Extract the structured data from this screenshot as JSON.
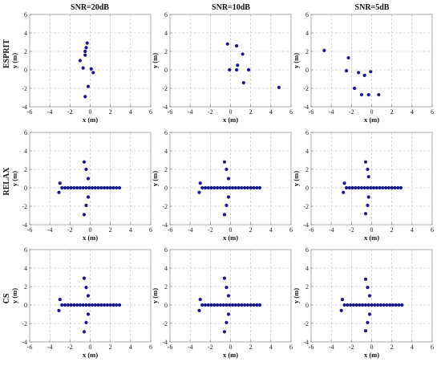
{
  "figure": {
    "column_titles": [
      "SNR=20dB",
      "SNR=10dB",
      "SNR=5dB"
    ],
    "row_labels": [
      "ESPRIT",
      "RELAX",
      "CS"
    ]
  },
  "chart_data": [
    {
      "type": "scatter",
      "title": "SNR=20dB",
      "row": "ESPRIT",
      "xlabel": "x (m)",
      "ylabel": "y (m)",
      "xlim": [
        -6,
        6
      ],
      "ylim": [
        -4,
        6
      ],
      "xticks": [
        -6,
        -4,
        -2,
        0,
        2,
        4,
        6
      ],
      "yticks": [
        -4,
        -2,
        0,
        2,
        4,
        6
      ],
      "grid": true,
      "color": "#1a1a8c",
      "points": [
        [
          -0.3,
          2.9
        ],
        [
          -0.4,
          2.4
        ],
        [
          -0.5,
          2.0
        ],
        [
          -0.5,
          1.6
        ],
        [
          -1.0,
          1.0
        ],
        [
          -0.7,
          0.2
        ],
        [
          0.1,
          0.1
        ],
        [
          0.3,
          -0.3
        ],
        [
          -0.2,
          -1.8
        ],
        [
          -0.5,
          -2.9
        ]
      ]
    },
    {
      "type": "scatter",
      "title": "SNR=10dB",
      "row": "ESPRIT",
      "xlabel": "x (m)",
      "ylabel": "y (m)",
      "xlim": [
        -6,
        6
      ],
      "ylim": [
        -4,
        6
      ],
      "xticks": [
        -6,
        -4,
        -2,
        0,
        2,
        4,
        6
      ],
      "yticks": [
        -4,
        -2,
        0,
        2,
        4,
        6
      ],
      "grid": true,
      "color": "#1a1a8c",
      "points": [
        [
          -0.3,
          2.8
        ],
        [
          0.6,
          2.6
        ],
        [
          1.2,
          1.7
        ],
        [
          0.7,
          0.5
        ],
        [
          0.6,
          0.0
        ],
        [
          -0.1,
          0.0
        ],
        [
          1.8,
          0.0
        ],
        [
          1.3,
          -1.4
        ],
        [
          4.8,
          -1.9
        ]
      ]
    },
    {
      "type": "scatter",
      "title": "SNR=5dB",
      "row": "ESPRIT",
      "xlabel": "x (m)",
      "ylabel": "y (m)",
      "xlim": [
        -6,
        6
      ],
      "ylim": [
        -4,
        6
      ],
      "xticks": [
        -6,
        -4,
        -2,
        0,
        2,
        4,
        6
      ],
      "yticks": [
        -4,
        -2,
        0,
        2,
        4,
        6
      ],
      "grid": true,
      "color": "#1a1a8c",
      "points": [
        [
          -4.7,
          2.1
        ],
        [
          -2.3,
          1.3
        ],
        [
          -2.5,
          -0.1
        ],
        [
          -1.3,
          -0.3
        ],
        [
          -0.7,
          -0.6
        ],
        [
          -0.1,
          -0.2
        ],
        [
          -1.7,
          -2.0
        ],
        [
          -1.0,
          -2.7
        ],
        [
          -0.3,
          -2.7
        ],
        [
          0.7,
          -2.7
        ]
      ]
    },
    {
      "type": "scatter",
      "title": "",
      "row": "RELAX",
      "xlabel": "x (m)",
      "ylabel": "y (m)",
      "xlim": [
        -6,
        6
      ],
      "ylim": [
        -4,
        6
      ],
      "xticks": [
        -6,
        -4,
        -2,
        0,
        2,
        4,
        6
      ],
      "yticks": [
        -4,
        -2,
        0,
        2,
        4,
        6
      ],
      "grid": true,
      "color": "#1a1a8c",
      "points": [
        [
          -0.6,
          2.8
        ],
        [
          -0.4,
          2.0
        ],
        [
          -0.2,
          1.0
        ],
        [
          -3.0,
          0.5
        ],
        [
          -3.1,
          -0.5
        ],
        [
          -2.8,
          0.0
        ],
        [
          -2.5,
          0.0
        ],
        [
          -2.2,
          0.0
        ],
        [
          -1.9,
          0.0
        ],
        [
          -1.6,
          0.0
        ],
        [
          -1.3,
          0.0
        ],
        [
          -1.0,
          0.0
        ],
        [
          -0.7,
          0.0
        ],
        [
          -0.4,
          0.0
        ],
        [
          -0.1,
          0.0
        ],
        [
          0.2,
          0.0
        ],
        [
          0.5,
          0.0
        ],
        [
          0.8,
          0.0
        ],
        [
          1.1,
          0.0
        ],
        [
          1.4,
          0.0
        ],
        [
          1.7,
          0.0
        ],
        [
          2.0,
          0.0
        ],
        [
          2.3,
          0.0
        ],
        [
          2.6,
          0.0
        ],
        [
          2.9,
          0.0
        ],
        [
          -0.2,
          -1.0
        ],
        [
          -0.4,
          -1.9
        ],
        [
          -0.6,
          -2.9
        ]
      ]
    },
    {
      "type": "scatter",
      "title": "",
      "row": "RELAX",
      "xlabel": "x (m)",
      "ylabel": "y (m)",
      "xlim": [
        -6,
        6
      ],
      "ylim": [
        -4,
        6
      ],
      "xticks": [
        -6,
        -4,
        -2,
        0,
        2,
        4,
        6
      ],
      "yticks": [
        -4,
        -2,
        0,
        2,
        4,
        6
      ],
      "grid": true,
      "color": "#1a1a8c",
      "points": [
        [
          -0.6,
          2.8
        ],
        [
          -0.4,
          2.0
        ],
        [
          -0.2,
          1.0
        ],
        [
          -3.0,
          0.5
        ],
        [
          -3.1,
          -0.5
        ],
        [
          -2.8,
          0.0
        ],
        [
          -2.5,
          0.0
        ],
        [
          -2.2,
          0.0
        ],
        [
          -1.9,
          0.0
        ],
        [
          -1.6,
          0.0
        ],
        [
          -1.3,
          0.0
        ],
        [
          -1.0,
          0.0
        ],
        [
          -0.7,
          0.0
        ],
        [
          -0.4,
          0.0
        ],
        [
          -0.1,
          0.0
        ],
        [
          0.2,
          0.0
        ],
        [
          0.5,
          0.0
        ],
        [
          0.8,
          0.0
        ],
        [
          1.1,
          0.0
        ],
        [
          1.4,
          0.0
        ],
        [
          1.7,
          0.0
        ],
        [
          2.0,
          0.0
        ],
        [
          2.3,
          0.0
        ],
        [
          2.6,
          0.0
        ],
        [
          2.9,
          0.0
        ],
        [
          -0.2,
          -1.0
        ],
        [
          -0.4,
          -1.9
        ],
        [
          -0.6,
          -2.9
        ]
      ]
    },
    {
      "type": "scatter",
      "title": "",
      "row": "RELAX",
      "xlabel": "x (m)",
      "ylabel": "y (m)",
      "xlim": [
        -6,
        6
      ],
      "ylim": [
        -4,
        6
      ],
      "xticks": [
        -6,
        -4,
        -2,
        0,
        2,
        4,
        6
      ],
      "yticks": [
        -4,
        -2,
        0,
        2,
        4,
        6
      ],
      "grid": true,
      "color": "#1a1a8c",
      "points": [
        [
          -0.6,
          2.8
        ],
        [
          -0.4,
          2.0
        ],
        [
          -0.3,
          1.2
        ],
        [
          -2.7,
          0.5
        ],
        [
          -2.8,
          -0.5
        ],
        [
          -2.5,
          0.0
        ],
        [
          -2.2,
          0.0
        ],
        [
          -1.9,
          0.0
        ],
        [
          -1.6,
          0.0
        ],
        [
          -1.3,
          0.0
        ],
        [
          -1.0,
          0.0
        ],
        [
          -0.7,
          0.0
        ],
        [
          -0.4,
          0.0
        ],
        [
          -0.1,
          0.0
        ],
        [
          0.2,
          0.0
        ],
        [
          0.5,
          0.0
        ],
        [
          0.8,
          0.0
        ],
        [
          1.1,
          0.0
        ],
        [
          1.4,
          0.0
        ],
        [
          1.7,
          0.0
        ],
        [
          2.0,
          0.0
        ],
        [
          2.3,
          0.0
        ],
        [
          2.6,
          0.0
        ],
        [
          2.9,
          0.0
        ],
        [
          -0.3,
          -1.0
        ],
        [
          -0.4,
          -1.9
        ],
        [
          -0.6,
          -2.8
        ]
      ]
    },
    {
      "type": "scatter",
      "title": "",
      "row": "CS",
      "xlabel": "x (m)",
      "ylabel": "y (m)",
      "xlim": [
        -6,
        6
      ],
      "ylim": [
        -4,
        6
      ],
      "xticks": [
        -6,
        -4,
        -2,
        0,
        2,
        4,
        6
      ],
      "yticks": [
        -4,
        -2,
        0,
        2,
        4,
        6
      ],
      "grid": true,
      "color": "#1a1a8c",
      "points": [
        [
          -0.6,
          2.9
        ],
        [
          -0.4,
          1.9
        ],
        [
          -0.2,
          1.0
        ],
        [
          -3.0,
          0.6
        ],
        [
          -3.1,
          -0.6
        ],
        [
          -2.8,
          0.0
        ],
        [
          -2.5,
          0.0
        ],
        [
          -2.2,
          0.0
        ],
        [
          -1.9,
          0.0
        ],
        [
          -1.6,
          0.0
        ],
        [
          -1.3,
          0.0
        ],
        [
          -1.0,
          0.0
        ],
        [
          -0.7,
          0.0
        ],
        [
          -0.4,
          0.0
        ],
        [
          -0.1,
          0.0
        ],
        [
          0.2,
          0.0
        ],
        [
          0.5,
          0.0
        ],
        [
          0.8,
          0.0
        ],
        [
          1.1,
          0.0
        ],
        [
          1.4,
          0.0
        ],
        [
          1.7,
          0.0
        ],
        [
          2.0,
          0.0
        ],
        [
          2.3,
          0.0
        ],
        [
          2.6,
          0.0
        ],
        [
          2.9,
          0.0
        ],
        [
          -0.2,
          -1.0
        ],
        [
          -0.4,
          -1.9
        ],
        [
          -0.6,
          -2.9
        ]
      ]
    },
    {
      "type": "scatter",
      "title": "",
      "row": "CS",
      "xlabel": "x (m)",
      "ylabel": "y (m)",
      "xlim": [
        -6,
        6
      ],
      "ylim": [
        -4,
        6
      ],
      "xticks": [
        -6,
        -4,
        -2,
        0,
        2,
        4,
        6
      ],
      "yticks": [
        -4,
        -2,
        0,
        2,
        4,
        6
      ],
      "grid": true,
      "color": "#1a1a8c",
      "points": [
        [
          -0.6,
          2.9
        ],
        [
          -0.4,
          1.9
        ],
        [
          -0.2,
          1.0
        ],
        [
          -3.0,
          0.6
        ],
        [
          -3.1,
          -0.6
        ],
        [
          -2.8,
          0.0
        ],
        [
          -2.5,
          0.0
        ],
        [
          -2.2,
          0.0
        ],
        [
          -1.9,
          0.0
        ],
        [
          -1.6,
          0.0
        ],
        [
          -1.3,
          0.0
        ],
        [
          -1.0,
          0.0
        ],
        [
          -0.7,
          0.0
        ],
        [
          -0.4,
          0.0
        ],
        [
          -0.1,
          0.0
        ],
        [
          0.2,
          0.0
        ],
        [
          0.5,
          0.0
        ],
        [
          0.8,
          0.0
        ],
        [
          1.1,
          0.0
        ],
        [
          1.4,
          0.0
        ],
        [
          1.7,
          0.0
        ],
        [
          2.0,
          0.0
        ],
        [
          2.3,
          0.0
        ],
        [
          2.6,
          0.0
        ],
        [
          2.9,
          0.0
        ],
        [
          -0.2,
          -1.0
        ],
        [
          -0.4,
          -1.9
        ],
        [
          -0.6,
          -2.9
        ]
      ]
    },
    {
      "type": "scatter",
      "title": "",
      "row": "CS",
      "xlabel": "x (m)",
      "ylabel": "y (m)",
      "xlim": [
        -6,
        6
      ],
      "ylim": [
        -4,
        6
      ],
      "xticks": [
        -6,
        -4,
        -2,
        0,
        2,
        4,
        6
      ],
      "yticks": [
        -4,
        -2,
        0,
        2,
        4,
        6
      ],
      "grid": true,
      "color": "#1a1a8c",
      "points": [
        [
          -0.6,
          2.8
        ],
        [
          -0.4,
          1.9
        ],
        [
          -0.2,
          1.0
        ],
        [
          -2.9,
          0.6
        ],
        [
          -3.0,
          -0.6
        ],
        [
          -2.7,
          0.0
        ],
        [
          -2.4,
          0.0
        ],
        [
          -2.1,
          0.0
        ],
        [
          -1.8,
          0.0
        ],
        [
          -1.5,
          0.0
        ],
        [
          -1.2,
          0.0
        ],
        [
          -0.9,
          0.0
        ],
        [
          -0.6,
          0.0
        ],
        [
          -0.3,
          0.0
        ],
        [
          0.0,
          0.0
        ],
        [
          0.3,
          0.0
        ],
        [
          0.6,
          0.0
        ],
        [
          0.9,
          0.0
        ],
        [
          1.2,
          0.0
        ],
        [
          1.5,
          0.0
        ],
        [
          1.8,
          0.0
        ],
        [
          2.1,
          0.0
        ],
        [
          2.4,
          0.0
        ],
        [
          2.7,
          0.0
        ],
        [
          3.0,
          0.0
        ],
        [
          -0.2,
          -1.0
        ],
        [
          -0.4,
          -1.9
        ],
        [
          -0.6,
          -2.8
        ]
      ]
    }
  ]
}
